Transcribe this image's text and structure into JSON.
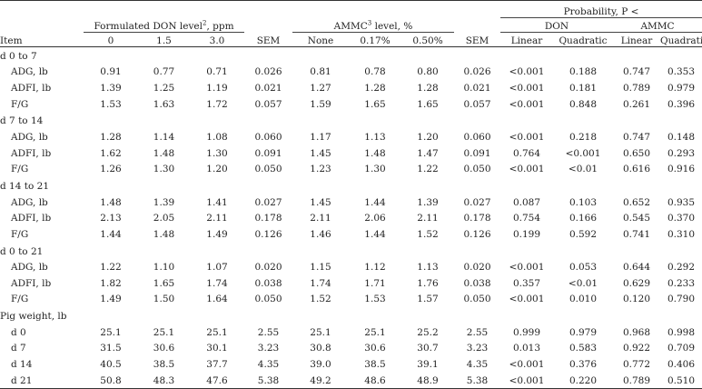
{
  "header": {
    "formulated_don": "Formulated DON level",
    "formulated_don_sup": "2",
    "formulated_don_unit": ", ppm",
    "ammc": "AMMC",
    "ammc_sup": "3",
    "ammc_unit": " level, %",
    "probability": "Probability, P <",
    "don": "DON",
    "ammc_group": "AMMC",
    "item": "Item",
    "don_levels": [
      "0",
      "1.5",
      "3.0"
    ],
    "sem": "SEM",
    "ammc_levels": [
      "None",
      "0.17%",
      "0.50%"
    ],
    "sem2": "SEM",
    "p_cols": [
      "Linear",
      "Quadratic",
      "Linear",
      "Quadratic"
    ]
  },
  "sections": [
    {
      "title": "d 0 to 7",
      "rows": [
        {
          "item": "ADG, lb",
          "values": [
            "0.91",
            "0.77",
            "0.71",
            "0.026",
            "0.81",
            "0.78",
            "0.80",
            "0.026",
            "<0.001",
            "0.188",
            "0.747",
            "0.353"
          ]
        },
        {
          "item": "ADFI, lb",
          "values": [
            "1.39",
            "1.25",
            "1.19",
            "0.021",
            "1.27",
            "1.28",
            "1.28",
            "0.021",
            "<0.001",
            "0.181",
            "0.789",
            "0.979"
          ]
        },
        {
          "item": "F/G",
          "values": [
            "1.53",
            "1.63",
            "1.72",
            "0.057",
            "1.59",
            "1.65",
            "1.65",
            "0.057",
            "<0.001",
            "0.848",
            "0.261",
            "0.396"
          ]
        }
      ]
    },
    {
      "title": "d 7 to 14",
      "rows": [
        {
          "item": "ADG, lb",
          "values": [
            "1.28",
            "1.14",
            "1.08",
            "0.060",
            "1.17",
            "1.13",
            "1.20",
            "0.060",
            "<0.001",
            "0.218",
            "0.747",
            "0.148"
          ]
        },
        {
          "item": "ADFI, lb",
          "values": [
            "1.62",
            "1.48",
            "1.30",
            "0.091",
            "1.45",
            "1.48",
            "1.47",
            "0.091",
            "0.764",
            "<0.001",
            "0.650",
            "0.293"
          ]
        },
        {
          "item": "F/G",
          "values": [
            "1.26",
            "1.30",
            "1.20",
            "0.050",
            "1.23",
            "1.30",
            "1.22",
            "0.050",
            "<0.001",
            "<0.01",
            "0.616",
            "0.916"
          ]
        }
      ]
    },
    {
      "title": "d 14 to 21",
      "rows": [
        {
          "item": "ADG, lb",
          "values": [
            "1.48",
            "1.39",
            "1.41",
            "0.027",
            "1.45",
            "1.44",
            "1.39",
            "0.027",
            "0.087",
            "0.103",
            "0.652",
            "0.935"
          ]
        },
        {
          "item": "ADFI, lb",
          "values": [
            "2.13",
            "2.05",
            "2.11",
            "0.178",
            "2.11",
            "2.06",
            "2.11",
            "0.178",
            "0.754",
            "0.166",
            "0.545",
            "0.370"
          ]
        },
        {
          "item": "F/G",
          "values": [
            "1.44",
            "1.48",
            "1.49",
            "0.126",
            "1.46",
            "1.44",
            "1.52",
            "0.126",
            "0.199",
            "0.592",
            "0.741",
            "0.310"
          ]
        }
      ]
    },
    {
      "title": "d 0 to 21",
      "rows": [
        {
          "item": "ADG, lb",
          "values": [
            "1.22",
            "1.10",
            "1.07",
            "0.020",
            "1.15",
            "1.12",
            "1.13",
            "0.020",
            "<0.001",
            "0.053",
            "0.644",
            "0.292"
          ]
        },
        {
          "item": "ADFI, lb",
          "values": [
            "1.82",
            "1.65",
            "1.74",
            "0.038",
            "1.74",
            "1.71",
            "1.76",
            "0.038",
            "0.357",
            "<0.01",
            "0.629",
            "0.233"
          ]
        },
        {
          "item": "F/G",
          "values": [
            "1.49",
            "1.50",
            "1.64",
            "0.050",
            "1.52",
            "1.53",
            "1.57",
            "0.050",
            "<0.001",
            "0.010",
            "0.120",
            "0.790"
          ]
        }
      ]
    },
    {
      "title": "Pig weight, lb",
      "rows": [
        {
          "item": "d 0",
          "values": [
            "25.1",
            "25.1",
            "25.1",
            "2.55",
            "25.1",
            "25.1",
            "25.2",
            "2.55",
            "0.999",
            "0.979",
            "0.968",
            "0.998"
          ]
        },
        {
          "item": "d 7",
          "values": [
            "31.5",
            "30.6",
            "30.1",
            "3.23",
            "30.8",
            "30.6",
            "30.7",
            "3.23",
            "0.013",
            "0.583",
            "0.922",
            "0.709"
          ]
        },
        {
          "item": "d 14",
          "values": [
            "40.5",
            "38.5",
            "37.7",
            "4.35",
            "39.0",
            "38.5",
            "39.1",
            "4.35",
            "<0.001",
            "0.376",
            "0.772",
            "0.406"
          ]
        },
        {
          "item": "d 21",
          "values": [
            "50.8",
            "48.3",
            "47.6",
            "5.38",
            "49.2",
            "48.6",
            "48.9",
            "5.38",
            "<0.001",
            "0.220",
            "0.789",
            "0.510"
          ]
        }
      ]
    }
  ]
}
